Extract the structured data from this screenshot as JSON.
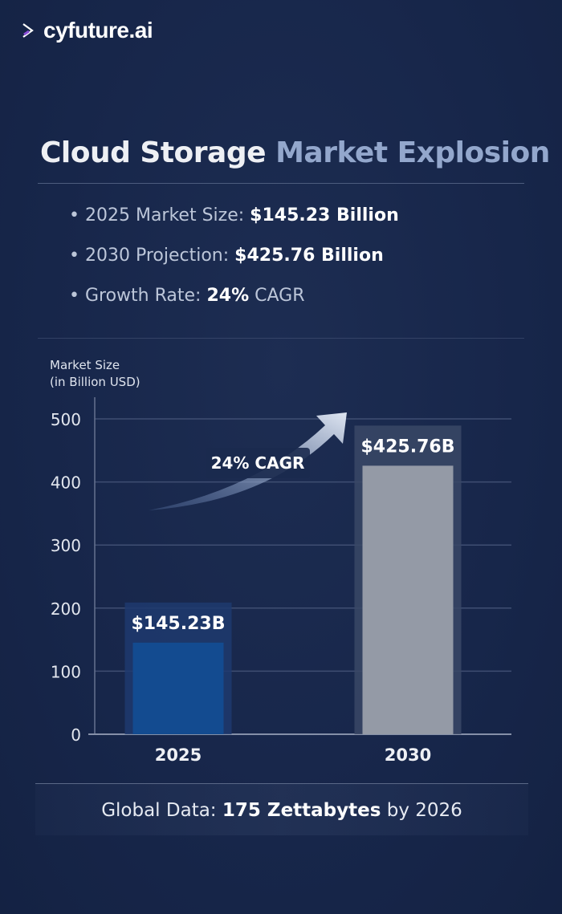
{
  "brand": {
    "logo_text": "cyfuture.ai"
  },
  "header": {
    "title_part1": "Cloud Storage",
    "title_part2": "Market Explosion"
  },
  "bullets": [
    {
      "label": "2025 Market Size:",
      "value": "$145.23 Billion"
    },
    {
      "label": "2030 Projection:",
      "value": "$425.76 Billion"
    },
    {
      "label": "Growth Rate:",
      "value": "24%",
      "suffix": "CAGR"
    }
  ],
  "chart_data": {
    "type": "bar",
    "ylabel_line1": "Market Size",
    "ylabel_line2": "(in Billion USD)",
    "categories": [
      "2025",
      "2030"
    ],
    "values": [
      145.23,
      425.76
    ],
    "data_labels": [
      "$145.23B",
      "$425.76B"
    ],
    "yticks": [
      "0",
      "100",
      "200",
      "300",
      "400",
      "500"
    ],
    "ylim": [
      0,
      500
    ],
    "grid": true,
    "annotation": "24% CAGR",
    "colors": [
      "#134b90",
      "#949aa6"
    ]
  },
  "footer": {
    "prefix": "Global Data:",
    "highlight": "175 Zettabytes",
    "suffix": "by 2026"
  }
}
